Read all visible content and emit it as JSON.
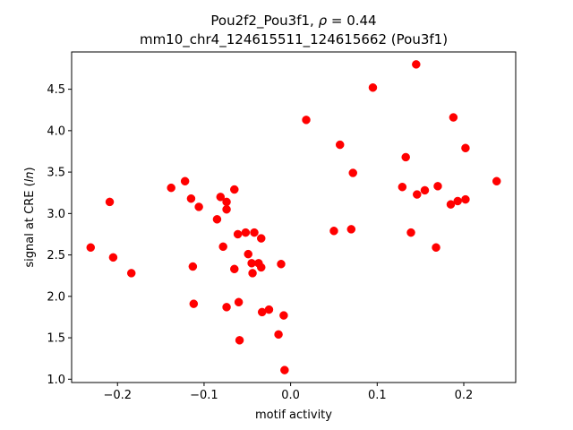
{
  "chart_data": {
    "type": "scatter",
    "title_line1_prefix": "Pou2f2_Pou3f1, ",
    "title_line1_rho": "ρ",
    "title_line1_suffix": " = 0.44",
    "title_line2": "mm10_chr4_124615511_124615662 (Pou3f1)",
    "xlabel": "motif activity",
    "ylabel_prefix": "signal at CRE (",
    "ylabel_italic": "ln",
    "ylabel_suffix": ")",
    "xlim": [
      -0.253,
      0.26
    ],
    "ylim": [
      0.96,
      4.95
    ],
    "xticks": [
      -0.2,
      -0.1,
      0.0,
      0.1,
      0.2
    ],
    "xtick_labels": [
      "−0.2",
      "−0.1",
      "0.0",
      "0.1",
      "0.2"
    ],
    "yticks": [
      1.0,
      1.5,
      2.0,
      2.5,
      3.0,
      3.5,
      4.0,
      4.5
    ],
    "ytick_labels": [
      "1.0",
      "1.5",
      "2.0",
      "2.5",
      "3.0",
      "3.5",
      "4.0",
      "4.5"
    ],
    "grid": false,
    "marker_color": "#ff0000",
    "points": [
      {
        "x": -0.231,
        "y": 2.59
      },
      {
        "x": -0.209,
        "y": 3.14
      },
      {
        "x": -0.205,
        "y": 2.47
      },
      {
        "x": -0.184,
        "y": 2.28
      },
      {
        "x": -0.138,
        "y": 3.31
      },
      {
        "x": -0.122,
        "y": 3.39
      },
      {
        "x": -0.115,
        "y": 3.18
      },
      {
        "x": -0.113,
        "y": 2.36
      },
      {
        "x": -0.112,
        "y": 1.91
      },
      {
        "x": -0.106,
        "y": 3.08
      },
      {
        "x": -0.085,
        "y": 2.93
      },
      {
        "x": -0.081,
        "y": 3.2
      },
      {
        "x": -0.078,
        "y": 2.6
      },
      {
        "x": -0.074,
        "y": 3.14
      },
      {
        "x": -0.074,
        "y": 3.05
      },
      {
        "x": -0.074,
        "y": 1.87
      },
      {
        "x": -0.065,
        "y": 3.29
      },
      {
        "x": -0.065,
        "y": 2.33
      },
      {
        "x": -0.061,
        "y": 2.75
      },
      {
        "x": -0.06,
        "y": 1.93
      },
      {
        "x": -0.059,
        "y": 1.47
      },
      {
        "x": -0.052,
        "y": 2.77
      },
      {
        "x": -0.049,
        "y": 2.51
      },
      {
        "x": -0.045,
        "y": 2.4
      },
      {
        "x": -0.044,
        "y": 2.28
      },
      {
        "x": -0.042,
        "y": 2.77
      },
      {
        "x": -0.037,
        "y": 2.4
      },
      {
        "x": -0.034,
        "y": 2.7
      },
      {
        "x": -0.034,
        "y": 2.35
      },
      {
        "x": -0.033,
        "y": 1.81
      },
      {
        "x": -0.025,
        "y": 1.84
      },
      {
        "x": -0.014,
        "y": 1.54
      },
      {
        "x": -0.011,
        "y": 2.39
      },
      {
        "x": -0.008,
        "y": 1.77
      },
      {
        "x": -0.007,
        "y": 1.11
      },
      {
        "x": 0.018,
        "y": 4.13
      },
      {
        "x": 0.05,
        "y": 2.79
      },
      {
        "x": 0.057,
        "y": 3.83
      },
      {
        "x": 0.07,
        "y": 2.81
      },
      {
        "x": 0.072,
        "y": 3.49
      },
      {
        "x": 0.095,
        "y": 4.52
      },
      {
        "x": 0.129,
        "y": 3.32
      },
      {
        "x": 0.133,
        "y": 3.68
      },
      {
        "x": 0.139,
        "y": 2.77
      },
      {
        "x": 0.145,
        "y": 4.8
      },
      {
        "x": 0.146,
        "y": 3.23
      },
      {
        "x": 0.155,
        "y": 3.28
      },
      {
        "x": 0.168,
        "y": 2.59
      },
      {
        "x": 0.17,
        "y": 3.33
      },
      {
        "x": 0.185,
        "y": 3.11
      },
      {
        "x": 0.188,
        "y": 4.16
      },
      {
        "x": 0.193,
        "y": 3.15
      },
      {
        "x": 0.202,
        "y": 3.79
      },
      {
        "x": 0.202,
        "y": 3.17
      },
      {
        "x": 0.238,
        "y": 3.39
      }
    ]
  }
}
